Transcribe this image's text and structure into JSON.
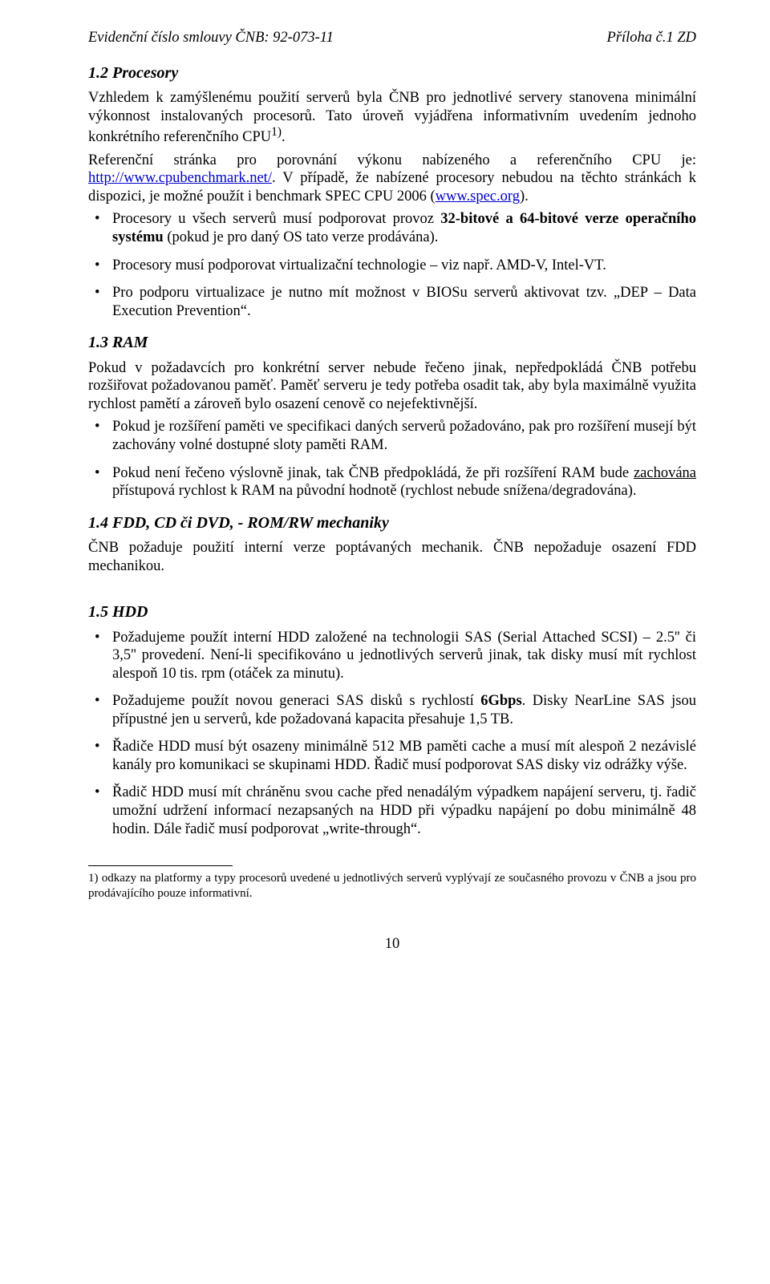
{
  "header": {
    "left": "Evidenční číslo smlouvy ČNB: 92-073-11",
    "right": "Příloha č.1 ZD"
  },
  "s1_2": {
    "title": "1.2 Procesory",
    "p1a": "Vzhledem k zamýšlenému použití serverů byla ČNB pro jednotlivé servery stanovena minimální výkonnost instalovaných procesorů. Tato úroveň vyjádřena informativním uvedením jednoho konkrétního referenčního CPU",
    "sup": "1)",
    "p1b": ".",
    "p2a": "Referenční stránka pro porovnání výkonu nabízeného a referenčního CPU je: ",
    "link1": "http://www.cpubenchmark.net/",
    "p2b": ". V případě, že nabízené procesory nebudou na těchto stránkách k dispozici, je možné použít i benchmark SPEC CPU 2006 (",
    "link2": "www.spec.org",
    "p2c": ").",
    "b1a": "Procesory u všech serverů musí podporovat provoz ",
    "b1bold": "32-bitové a 64-bitové verze operačního systému",
    "b1b": " (pokud je pro daný OS tato verze prodávána).",
    "b2": "Procesory musí podporovat virtualizační technologie – viz např. AMD-V, Intel-VT.",
    "b3": "Pro podporu virtualizace je nutno mít možnost v BIOSu serverů aktivovat tzv. „DEP – Data Execution Prevention“."
  },
  "s1_3": {
    "title": "1.3 RAM",
    "p1": "Pokud v požadavcích pro konkrétní server nebude řečeno jinak, nepředpokládá ČNB potřebu rozšiřovat požadovanou paměť. Paměť serveru je tedy potřeba osadit tak, aby byla maximálně využita rychlost pamětí a zároveň bylo osazení cenově co nejefektivnější.",
    "b1": "Pokud je rozšíření paměti ve specifikaci daných serverů požadováno, pak pro rozšíření musejí být zachovány volné dostupné sloty paměti RAM.",
    "b2a": "Pokud není řečeno výslovně jinak, tak ČNB předpokládá, že při rozšíření RAM bude ",
    "b2u": "zachována",
    "b2b": " přístupová rychlost k RAM na původní hodnotě (rychlost nebude snížena/degradována)."
  },
  "s1_4": {
    "title": "1.4 FDD, CD či DVD,  - ROM/RW mechaniky",
    "p1": "ČNB požaduje použití interní verze poptávaných mechanik. ČNB nepožaduje osazení FDD mechanikou."
  },
  "s1_5": {
    "title": "1.5 HDD",
    "b1": "Požadujeme použít interní HDD založené na technologii SAS (Serial Attached SCSI) – 2.5'' či 3,5'' provedení. Není-li specifikováno u jednotlivých serverů jinak, tak disky musí mít rychlost alespoň 10 tis. rpm (otáček za minutu).",
    "b2a": "Požadujeme použít novou generaci SAS disků s rychlostí ",
    "b2bold": "6Gbps",
    "b2b": ". Disky NearLine SAS jsou přípustné jen u serverů, kde požadovaná kapacita přesahuje 1,5 TB.",
    "b3": "Řadiče HDD musí být osazeny minimálně 512 MB paměti cache a musí mít alespoň 2 nezávislé kanály pro komunikaci se skupinami HDD. Řadič musí podporovat SAS disky viz odrážky výše.",
    "b4": "Řadič HDD musí mít chráněnu svou cache před nenadálým výpadkem napájení serveru, tj. řadič umožní udržení informací nezapsaných na HDD při výpadku napájení po dobu minimálně 48 hodin. Dále řadič musí podporovat „write-through“."
  },
  "footnote": {
    "text": "1) odkazy na platformy a typy procesorů uvedené u jednotlivých serverů vyplývají ze současného provozu v ČNB a jsou pro prodávajícího pouze informativní."
  },
  "pagenum": "10"
}
